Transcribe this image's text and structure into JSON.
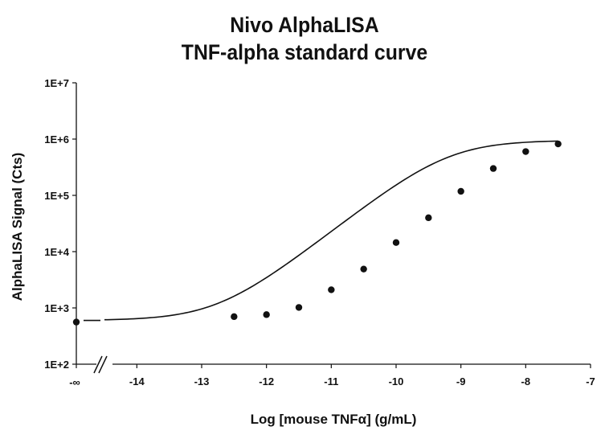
{
  "chart_data": {
    "type": "scatter",
    "title_lines": [
      "Nivo AlphaLISA",
      "TNF-alpha standard curve"
    ],
    "xlabel": "Log [mouse TNFα] (g/mL)",
    "ylabel": "AlphaLISA Signal (Cts)",
    "x_scale": "linear",
    "y_scale": "log",
    "xlim": [
      -14.5,
      -7
    ],
    "ylim": [
      100,
      10000000
    ],
    "x_ticks": [
      -14,
      -13,
      -12,
      -11,
      -10,
      -9,
      -8,
      -7
    ],
    "x_tick_labels": [
      "-14",
      "-13",
      "-12",
      "-11",
      "-10",
      "-9",
      "-8",
      "-7"
    ],
    "x_break_label": "-∞",
    "y_ticks": [
      100,
      1000,
      10000,
      100000,
      1000000,
      10000000
    ],
    "y_tick_labels": [
      "1E+2",
      "1E+3",
      "1E+4",
      "1E+5",
      "1E+6",
      "1E+7"
    ],
    "grid": false,
    "legend": "none",
    "zero_point": {
      "x_label": "-∞",
      "y": 560
    },
    "points": [
      {
        "x": -12.5,
        "y": 700
      },
      {
        "x": -12.0,
        "y": 760
      },
      {
        "x": -11.5,
        "y": 1020
      },
      {
        "x": -11.0,
        "y": 2100
      },
      {
        "x": -10.5,
        "y": 4900
      },
      {
        "x": -10.0,
        "y": 14500
      },
      {
        "x": -9.5,
        "y": 40000
      },
      {
        "x": -9.0,
        "y": 118000
      },
      {
        "x": -8.5,
        "y": 300000
      },
      {
        "x": -8.0,
        "y": 600000
      },
      {
        "x": -7.5,
        "y": 820000
      }
    ],
    "fit_curve": {
      "model": "4PL",
      "bottom": 600,
      "top": 950000,
      "log_ec50": -9.2,
      "hill_slope": 0.9,
      "x_range": [
        -14.5,
        -7.5
      ]
    },
    "colors": {
      "axis": "#111111",
      "marker": "#111111",
      "curve": "#111111",
      "background": "#ffffff"
    }
  }
}
